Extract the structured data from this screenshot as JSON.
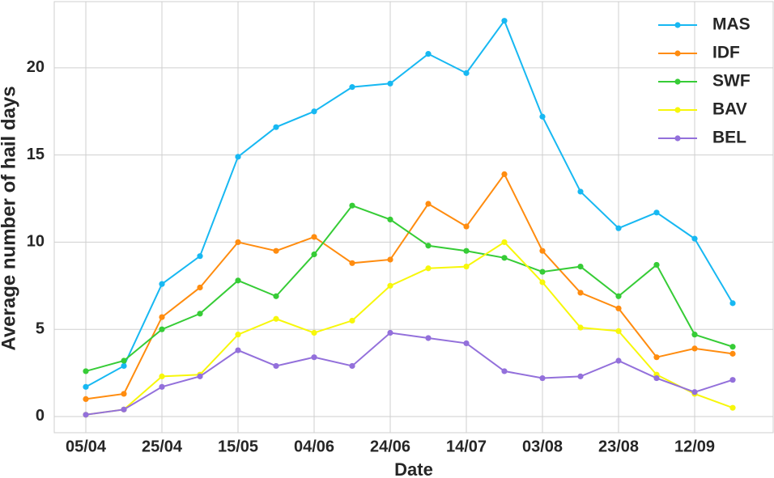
{
  "chart_data": {
    "type": "line",
    "x_label": "Date",
    "y_label": "Average number of hail days",
    "categories": [
      "05/04",
      null,
      "25/04",
      null,
      "15/05",
      null,
      "04/06",
      null,
      "24/06",
      null,
      "14/07",
      null,
      "03/08",
      null,
      "23/08",
      null,
      "12/09",
      null
    ],
    "series": [
      {
        "name": "MAS",
        "color": "#17b8f2",
        "values": [
          1.7,
          2.9,
          7.6,
          9.2,
          14.9,
          16.6,
          17.5,
          18.9,
          19.1,
          20.8,
          19.7,
          22.7,
          17.2,
          12.9,
          10.8,
          11.7,
          10.2,
          6.5
        ]
      },
      {
        "name": "IDF",
        "color": "#ff8c0f",
        "values": [
          1.0,
          1.3,
          5.7,
          7.4,
          10.0,
          9.5,
          10.3,
          8.8,
          9.0,
          12.2,
          10.9,
          13.9,
          9.5,
          7.1,
          6.2,
          3.4,
          3.9,
          3.6
        ]
      },
      {
        "name": "SWF",
        "color": "#36cc36",
        "values": [
          2.6,
          3.2,
          5.0,
          5.9,
          7.8,
          6.9,
          9.3,
          12.1,
          11.3,
          9.8,
          9.5,
          9.1,
          8.3,
          8.6,
          6.9,
          8.7,
          4.7,
          4.0
        ]
      },
      {
        "name": "BAV",
        "color": "#f7f70a",
        "values": [
          0.1,
          0.4,
          2.3,
          2.4,
          4.7,
          5.6,
          4.8,
          5.5,
          7.5,
          8.5,
          8.6,
          10.0,
          7.7,
          5.1,
          4.9,
          2.4,
          1.3,
          0.5
        ]
      },
      {
        "name": "BEL",
        "color": "#9370db",
        "values": [
          0.1,
          0.4,
          1.7,
          2.3,
          3.8,
          2.9,
          3.4,
          2.9,
          4.8,
          4.5,
          4.2,
          2.6,
          2.2,
          2.3,
          3.2,
          2.2,
          1.4,
          2.1
        ]
      }
    ],
    "ylim": [
      -0.93,
      23.8
    ],
    "yticks": [
      0,
      5,
      10,
      15,
      20
    ],
    "grid": true,
    "legend": "upper right"
  }
}
